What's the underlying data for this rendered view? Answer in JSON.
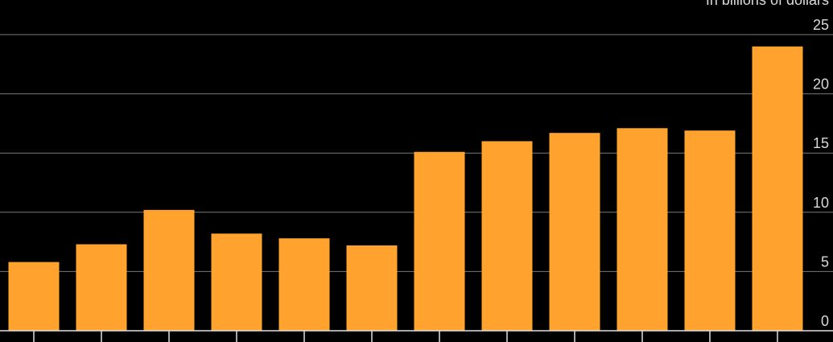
{
  "chart_data": {
    "type": "bar",
    "subtitle": "In billions of dollars",
    "categories": [
      null,
      null,
      null,
      null,
      null,
      null,
      null,
      null,
      null,
      null,
      null,
      null
    ],
    "values": [
      5.8,
      7.3,
      10.2,
      8.2,
      7.8,
      7.2,
      15.1,
      16.0,
      16.7,
      17.1,
      16.9,
      24.0
    ],
    "color": "#ffa32e",
    "ylim": [
      0,
      25
    ],
    "yticks": [
      0,
      5,
      10,
      15,
      20,
      25
    ],
    "grid": true
  }
}
